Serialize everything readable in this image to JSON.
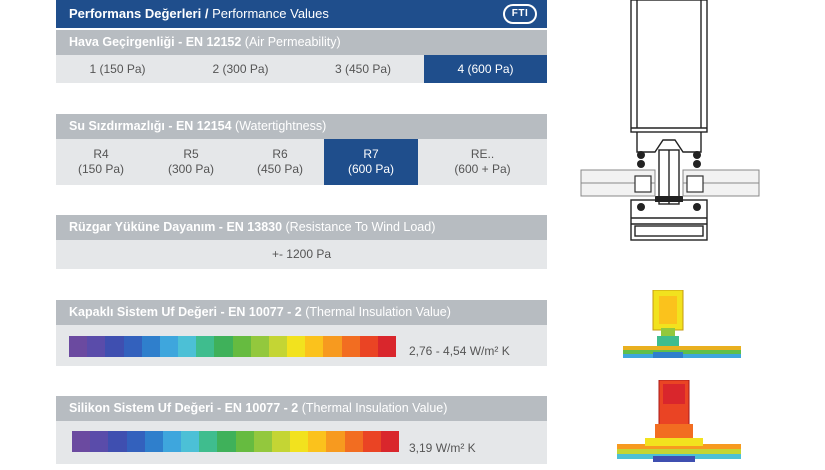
{
  "header": {
    "title_tr": "Performans Değerleri",
    "separator": " / ",
    "title_en": "Performance Values",
    "logo": "FTI"
  },
  "air": {
    "title_bold": "Hava Geçirgenliği - EN 12152",
    "title_rest": " (Air Permeability)",
    "options": [
      {
        "class": "1",
        "pa": "(150 Pa)"
      },
      {
        "class": "2",
        "pa": "(300 Pa)"
      },
      {
        "class": "3",
        "pa": "(450 Pa)"
      },
      {
        "class": "4",
        "pa": "(600 Pa)"
      }
    ],
    "selected_index": 3
  },
  "water": {
    "title_bold": "Su Sızdırmazlığı - EN 12154",
    "title_rest": " (Watertightness)",
    "options": [
      {
        "class": "R4",
        "pa": "(150 Pa)"
      },
      {
        "class": "R5",
        "pa": "(300 Pa)"
      },
      {
        "class": "R6",
        "pa": "(450 Pa)"
      },
      {
        "class": "R7",
        "pa": "(600 Pa)"
      },
      {
        "class": "RE..",
        "pa": "(600 + Pa)"
      }
    ],
    "selected_index": 3
  },
  "wind": {
    "title_bold": "Rüzgar Yüküne Dayanım - EN 13830",
    "title_rest": " (Resistance To Wind Load)",
    "value": "+- 1200 Pa"
  },
  "thermal_capped": {
    "title_bold": "Kapaklı Sistem Uf Değeri - EN 10077 - 2",
    "title_rest": " (Thermal Insulation Value)",
    "value": "2,76 - 4,54 W/m² K"
  },
  "thermal_silicone": {
    "title_bold": "Silikon Sistem Uf Değeri - EN 10077 - 2",
    "title_rest": " (Thermal Insulation Value)",
    "value": "3,19 W/m² K"
  },
  "colors": {
    "brand_blue": "#1f4e8c",
    "header_gray": "#b7bcc1",
    "row_gray": "#e5e7e9",
    "gradient": [
      "#6b4aa0",
      "#5a4caa",
      "#3f4fb0",
      "#3361bd",
      "#2f7fcc",
      "#3ea6dd",
      "#4cc0d6",
      "#3fbd8e",
      "#3fb15a",
      "#66bb40",
      "#93c83d",
      "#c4d534",
      "#f2e21e",
      "#fbc21c",
      "#f79a1f",
      "#f26d21",
      "#ea4424",
      "#d9262c"
    ]
  }
}
